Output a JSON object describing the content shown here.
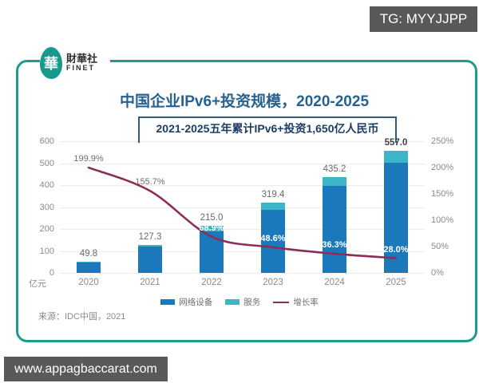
{
  "watermarks": {
    "top": "TG: MYYJJPP",
    "bottom": "www.appagbaccarat.com"
  },
  "logo": {
    "glyph": "華",
    "name_cn": "財華社",
    "name_en": "FINET"
  },
  "header": {
    "title": "中国企业IPv6+投资规模，2020-2025",
    "callout": "2021-2025五年累计IPv6+投资1,650亿人民币"
  },
  "chart_data": {
    "type": "bar",
    "subtype": "stacked bars with growth-rate line on secondary axis",
    "title": "中国企业IPv6+投资规模，2020-2025",
    "categories": [
      "2020",
      "2021",
      "2022",
      "2023",
      "2024",
      "2025"
    ],
    "series": [
      {
        "name": "网络设备",
        "type": "bar",
        "color": "#1b79bb",
        "values": [
          48.3,
          121.3,
          190.0,
          286.4,
          395.2,
          502.0
        ]
      },
      {
        "name": "服务",
        "type": "bar",
        "color": "#3cb6c6",
        "values": [
          1.5,
          6.0,
          25.0,
          33.0,
          40.0,
          55.0
        ]
      },
      {
        "name": "增长率",
        "type": "line",
        "color": "#8c2d58",
        "axis": "right",
        "values": [
          199.9,
          155.7,
          68.9,
          48.6,
          36.3,
          28.0
        ]
      }
    ],
    "bar_totals": [
      49.8,
      127.3,
      215.0,
      319.4,
      435.2,
      557.0
    ],
    "bar_total_labels": [
      "49.8",
      "127.3",
      "215.0",
      "319.4",
      "435.2",
      "557.0"
    ],
    "line_labels": [
      "199.9%",
      "155.7%",
      "68.9%",
      "48.6%",
      "36.3%",
      "28.0%"
    ],
    "left_axis": {
      "label": "亿元",
      "min": 0,
      "max": 600,
      "step": 100,
      "ticks": [
        "0",
        "100",
        "200",
        "300",
        "400",
        "500",
        "600"
      ]
    },
    "right_axis": {
      "min": 0,
      "max": 250,
      "step": 50,
      "ticks": [
        "0%",
        "50%",
        "100%",
        "150%",
        "200%",
        "250%"
      ]
    },
    "grid": true,
    "legend_position": "bottom"
  },
  "source": "来源：IDC中国，2021",
  "colors": {
    "bar_network": "#1b79bb",
    "bar_service": "#3cb6c6",
    "growth_line": "#8c2d58",
    "frame": "#1c9c90",
    "title": "#26618f",
    "watermark_bg": "#595959"
  }
}
